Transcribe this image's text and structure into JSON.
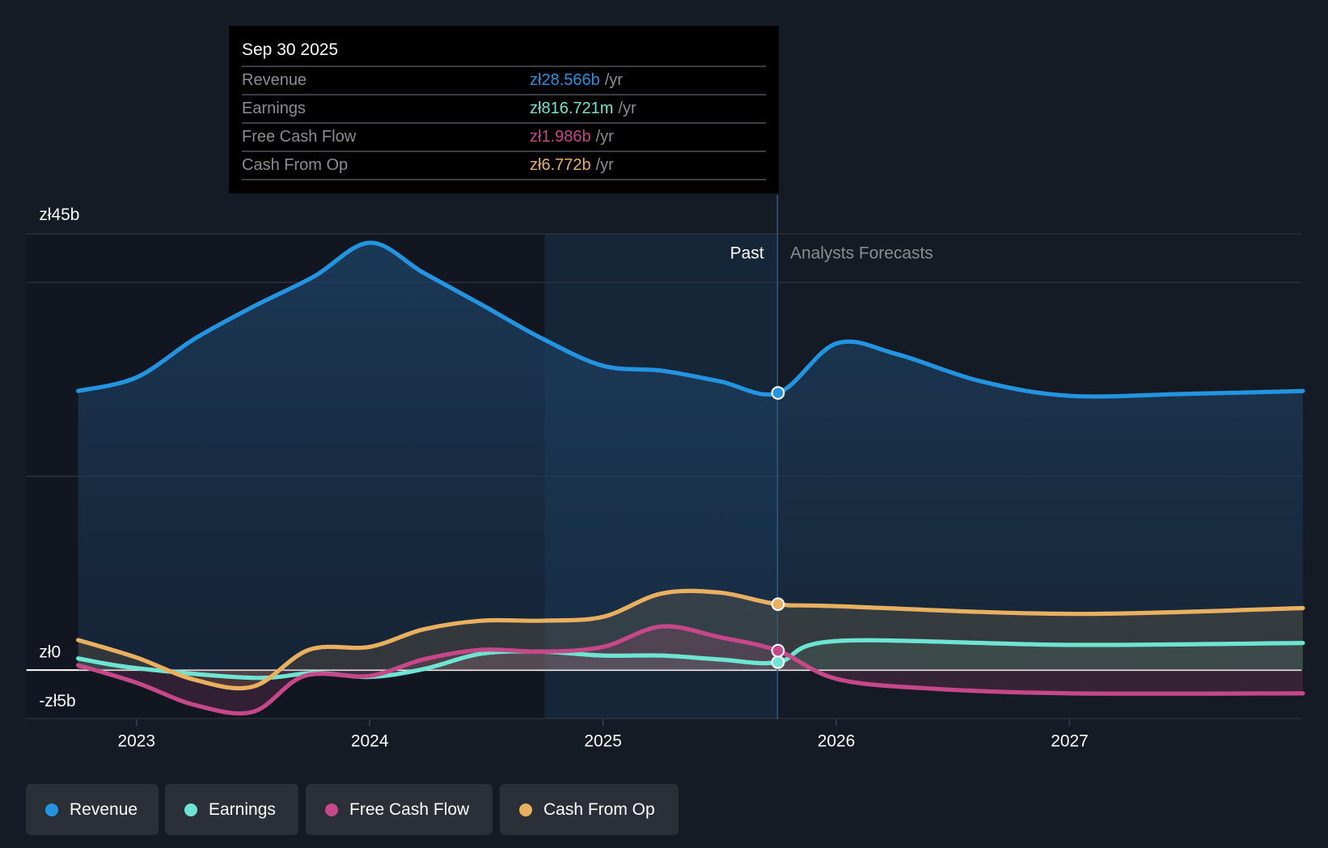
{
  "tooltip": {
    "date": "Sep 30 2025",
    "unit": "/yr",
    "rows": [
      {
        "label": "Revenue",
        "value": "zł28.566b",
        "color": "#2394e0"
      },
      {
        "label": "Earnings",
        "value": "zł816.721m",
        "color": "#6ee5d2"
      },
      {
        "label": "Free Cash Flow",
        "value": "zł1.986b",
        "color": "#c6478a"
      },
      {
        "label": "Cash From Op",
        "value": "zł6.772b",
        "color": "#e9b15f"
      }
    ]
  },
  "legend": [
    {
      "label": "Revenue",
      "color": "#2394e0"
    },
    {
      "label": "Earnings",
      "color": "#6ee5d2"
    },
    {
      "label": "Free Cash Flow",
      "color": "#c6478a"
    },
    {
      "label": "Cash From Op",
      "color": "#e9b15f"
    }
  ],
  "chart_data": {
    "type": "line",
    "ylabel_top": "zł45b",
    "y_ticks": [
      {
        "value": 45,
        "label": "zł45b"
      },
      {
        "value": 0,
        "label": "zł0"
      },
      {
        "value": -5,
        "label": "-zł5b"
      }
    ],
    "gridlines": [
      45,
      40,
      20,
      0,
      -5
    ],
    "ylim": [
      -5,
      45
    ],
    "xlim": [
      2022.75,
      2028.0
    ],
    "x_ticks": [
      {
        "value": 2023,
        "label": "2023"
      },
      {
        "value": 2024,
        "label": "2024"
      },
      {
        "value": 2025,
        "label": "2025"
      },
      {
        "value": 2026,
        "label": "2026"
      },
      {
        "value": 2027,
        "label": "2027"
      }
    ],
    "past_label": "Past",
    "forecast_label": "Analysts Forecasts",
    "divider_x": 2025.75,
    "highlight_start": 2024.75,
    "series": [
      {
        "name": "Revenue",
        "color": "#2394e0",
        "x": [
          2022.75,
          2023,
          2023.25,
          2023.5,
          2023.76,
          2024,
          2024.23,
          2024.48,
          2024.74,
          2025,
          2025.25,
          2025.5,
          2025.75,
          2026,
          2026.26,
          2026.62,
          2027,
          2027.5,
          2028
        ],
        "y": [
          28.8,
          30.2,
          34.2,
          37.5,
          40.6,
          44.1,
          41,
          37.7,
          34.2,
          31.4,
          30.9,
          29.8,
          28.6,
          33.7,
          32.6,
          29.8,
          28.3,
          28.5,
          28.8
        ]
      },
      {
        "name": "Earnings",
        "color": "#6ee5d2",
        "x": [
          2022.75,
          2023,
          2023.5,
          2023.76,
          2024,
          2024.23,
          2024.48,
          2024.74,
          2025,
          2025.25,
          2025.5,
          2025.75,
          2026,
          2027,
          2028
        ],
        "y": [
          1.2,
          0.2,
          -0.8,
          -0.3,
          -0.7,
          0.1,
          1.7,
          1.9,
          1.5,
          1.5,
          1.1,
          0.82,
          3.0,
          2.6,
          2.8
        ]
      },
      {
        "name": "Free Cash Flow",
        "color": "#c6478a",
        "x": [
          2022.75,
          2023,
          2023.25,
          2023.5,
          2023.72,
          2024,
          2024.23,
          2024.48,
          2024.74,
          2025,
          2025.25,
          2025.5,
          2025.75,
          2026,
          2026.4,
          2027,
          2028
        ],
        "y": [
          0.5,
          -1.3,
          -3.6,
          -4.3,
          -0.6,
          -0.6,
          1.1,
          2.1,
          1.9,
          2.4,
          4.5,
          3.4,
          2.0,
          -0.9,
          -1.9,
          -2.4,
          -2.4
        ]
      },
      {
        "name": "Cash From Op",
        "color": "#e9b15f",
        "x": [
          2022.75,
          2023,
          2023.25,
          2023.5,
          2023.74,
          2024,
          2024.23,
          2024.48,
          2024.74,
          2025,
          2025.25,
          2025.5,
          2025.75,
          2026,
          2027,
          2028
        ],
        "y": [
          3.1,
          1.3,
          -1.0,
          -1.7,
          2.1,
          2.4,
          4.2,
          5.1,
          5.1,
          5.5,
          7.9,
          8.0,
          6.8,
          6.6,
          5.8,
          6.4
        ]
      }
    ]
  }
}
